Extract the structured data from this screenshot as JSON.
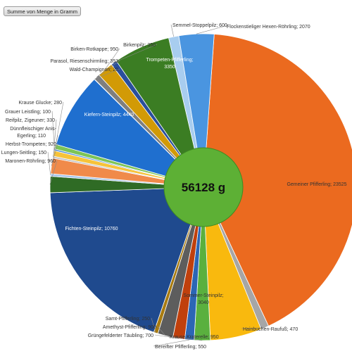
{
  "field_button": {
    "label": "Summe von Menge in Gramm"
  },
  "chart_data": {
    "type": "pie",
    "center_label": "56128 g",
    "total": 56128,
    "slices": [
      {
        "name": "Gemeiner Pfifferling",
        "value": 23525,
        "text": "Gemeiner Pfifferling; 23525",
        "color": "#eb6a1f",
        "inside": true
      },
      {
        "name": "Hainbuchen-Raufuß",
        "value": 470,
        "text": "Hainbuchen-Raufuß; 470",
        "color": "#a6a6a6"
      },
      {
        "name": "Sommer-Steinpilz",
        "value": 3040,
        "text": "Sommer-Steinpilz; 3040",
        "color": "#f9b90e",
        "inside": true
      },
      {
        "name": "Krause Kraterelle",
        "value": 950,
        "text": "Krause Kraterelle; 950",
        "color": "#5ab03e"
      },
      {
        "name": "Bereifter Pfifferling",
        "value": 550,
        "text": "Bereifter Pfifferling; 550",
        "color": "#2c66b5"
      },
      {
        "name": "Grüngefelderter Täubling",
        "value": 700,
        "text": "Grüngefelderter Täubling; 700",
        "color": "#c0400c"
      },
      {
        "name": "Amethyst-Pfifferling",
        "value": 900,
        "text": "Amethyst-Pfifferling; 900",
        "color": "#5d5d5d"
      },
      {
        "name": "Samt-Pfifferling",
        "value": 250,
        "text": "Samt-Pfifferling; 250",
        "color": "#a87b10"
      },
      {
        "name": "Fichten-Steinpilz",
        "value": 10760,
        "text": "Fichten-Steinpilz; 10760",
        "color": "#1f4a8e",
        "inside": true
      },
      {
        "name": "Maronen-Röhrling",
        "value": 960,
        "text": "Maronen-Röhrling; 960",
        "color": "#2f6b25"
      },
      {
        "name": "Lungen-Seitling",
        "value": 150,
        "text": "Lungen-Seitling; 150",
        "color": "#a7c6ea"
      },
      {
        "name": "Herbst-Trompeten",
        "value": 920,
        "text": "Herbst-Trompeten; 920",
        "color": "#f08a4a"
      },
      {
        "name": "Dünnfleischiger Anis-Egerling",
        "value": 110,
        "text": "Dünnfleischiger Anis-Egerling; 110",
        "color": "#bfbfbf"
      },
      {
        "name": "Reifpilz, Zigeuner",
        "value": 330,
        "text": "Reifpilz, Zigeuner; 330",
        "color": "#f6c33a"
      },
      {
        "name": "Grauer Leistling",
        "value": 100,
        "text": "Grauer Leistling; 100",
        "color": "#4a8dd8"
      },
      {
        "name": "Krause Glucke",
        "value": 280,
        "text": "Krause Glucke; 280",
        "color": "#7cc456"
      },
      {
        "name": "Kiefern-Steinpilz",
        "value": 4440,
        "text": "Kiefern-Steinpilz; 4440",
        "color": "#1f6fcf",
        "inside": true
      },
      {
        "name": "Wald-Champignon",
        "value": 20,
        "text": "Wald-Champignon; 20",
        "color": "#9c4a1a"
      },
      {
        "name": "Parasol, Riesenschirmling",
        "value": 353,
        "text": "Parasol, Riesenschirmling; 353",
        "color": "#7f7f7f"
      },
      {
        "name": "Birken-Rotkappe",
        "value": 950,
        "text": "Birken-Rotkappe; 950",
        "color": "#d29a06"
      },
      {
        "name": "Birkenpilz",
        "value": 350,
        "text": "Birkenpilz; 350",
        "color": "#2a4f9c"
      },
      {
        "name": "Trompeten-Pfifferling",
        "value": 3350,
        "text": "Trompeten-Pfifferling; 3350",
        "color": "#3b7d23",
        "inside": true
      },
      {
        "name": "Semmel-Stoppelpilz",
        "value": 600,
        "text": "Semmel-Stoppelpilz; 600",
        "color": "#a8cdef"
      },
      {
        "name": "Flockenstieliger Hexen-Röhrling",
        "value": 2070,
        "text": "Flockenstieliger Hexen-Röhrling; 2070",
        "color": "#4a95e0"
      }
    ],
    "center_color": "#5db035"
  }
}
